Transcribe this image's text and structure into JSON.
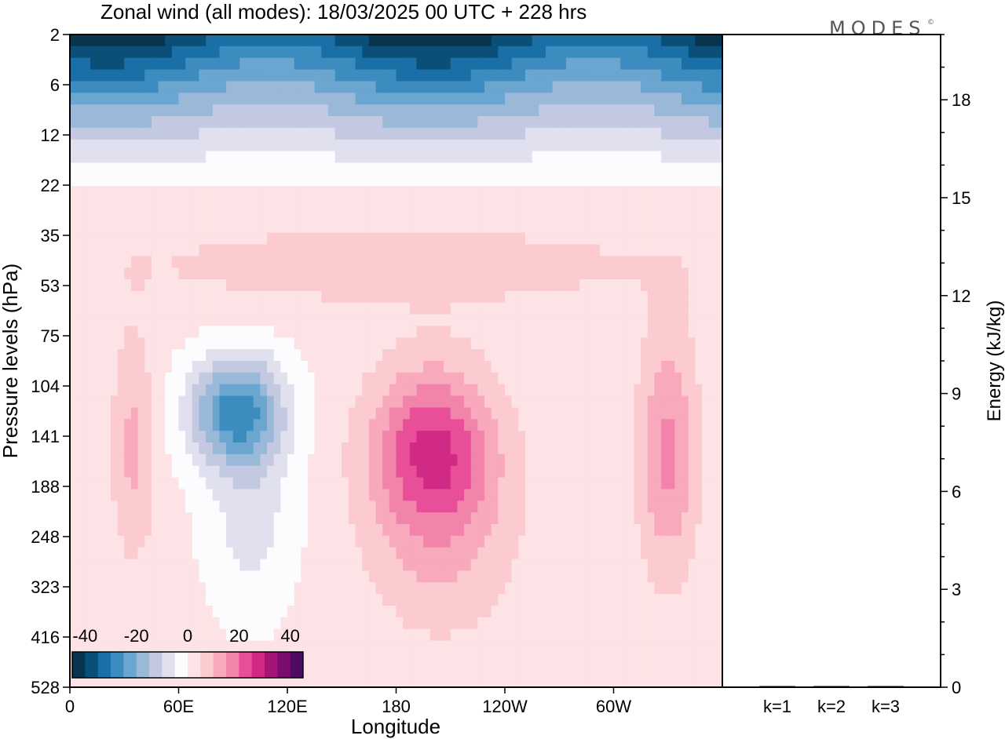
{
  "header": {
    "title": "Zonal wind (all modes):  18/03/2025  00 UTC  + 228 hrs",
    "brand": "MODES",
    "brand_mark": "©"
  },
  "colors": {
    "scale": [
      "#08344f",
      "#0a4f78",
      "#1a6fa6",
      "#3d8cc0",
      "#6aa6cf",
      "#9ab9d8",
      "#c2c9e0",
      "#e0e0ee",
      "#fcfcff",
      "#fde3e5",
      "#fbcbd0",
      "#f8a9bc",
      "#f284aa",
      "#e94f99",
      "#d12a86",
      "#a51577",
      "#7a0c6e",
      "#4e0a62"
    ],
    "frame": "#000000"
  },
  "chart_data": [
    {
      "type": "heatmap",
      "title": "Zonal wind (all modes):  18/03/2025  00 UTC  + 228 hrs",
      "xlabel": "Longitude",
      "ylabel": "Pressure levels (hPa)",
      "x_ticks": [
        "0",
        "60E",
        "120E",
        "180",
        "120W",
        "60W"
      ],
      "x_tick_degrees": [
        0,
        60,
        120,
        180,
        240,
        300
      ],
      "xlim": [
        0,
        360
      ],
      "y_ticks": [
        "2",
        "6",
        "12",
        "22",
        "35",
        "53",
        "75",
        "104",
        "141",
        "188",
        "248",
        "323",
        "416",
        "528"
      ],
      "colorbar": {
        "tick_labels": [
          "-40",
          "-20",
          "0",
          "20",
          "40"
        ],
        "ticks": [
          -40,
          -20,
          0,
          20,
          40
        ],
        "range": [
          -45,
          45
        ],
        "step": 5
      },
      "features": [
        {
          "label": "stratospheric easterly jet",
          "lon_range": [
            0,
            360
          ],
          "p_range": [
            2,
            22
          ],
          "min_value": -45
        },
        {
          "label": "easterly core",
          "lon_center": 95,
          "p_center": 104,
          "min_value": -28
        },
        {
          "label": "westerly jet",
          "lon_center": 200,
          "p_center": 141,
          "max_value": 22
        },
        {
          "label": "westerly jet",
          "lon_center": 330,
          "p_center": 141,
          "max_value": 15
        },
        {
          "label": "westerly jet",
          "lon_center": 35,
          "p_center": 141,
          "max_value": 10
        }
      ]
    },
    {
      "type": "bar",
      "ylabel": "Energy (kJ/kg)",
      "categories": [
        "k=1",
        "k=2",
        "k=3"
      ],
      "values": [
        0.02,
        0.01,
        0.01
      ],
      "ylim": [
        0,
        20
      ],
      "y_ticks": [
        "0",
        "3",
        "6",
        "9",
        "12",
        "15",
        "18"
      ],
      "y_tick_values": [
        0,
        3,
        6,
        9,
        12,
        15,
        18
      ]
    }
  ]
}
